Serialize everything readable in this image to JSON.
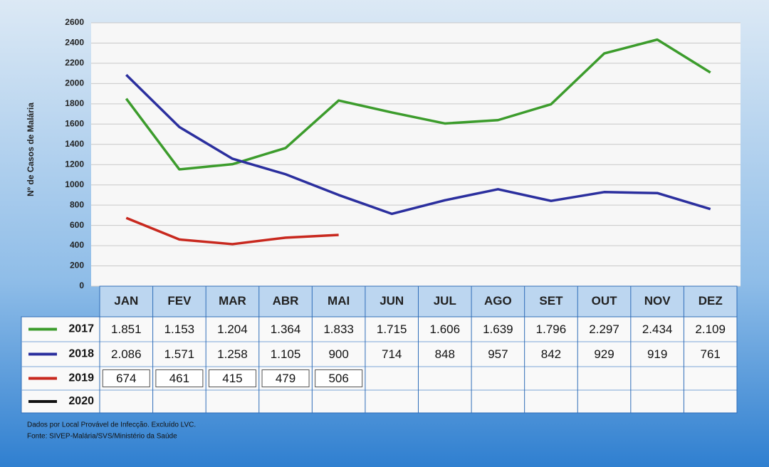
{
  "chart_data": {
    "type": "line",
    "y_label": "Nº de Casos de Malária",
    "categories": [
      "JAN",
      "FEV",
      "MAR",
      "ABR",
      "MAI",
      "JUN",
      "JUL",
      "AGO",
      "SET",
      "OUT",
      "NOV",
      "DEZ"
    ],
    "ylim": [
      0,
      2600
    ],
    "yticks": [
      0,
      200,
      400,
      600,
      800,
      1000,
      1200,
      1400,
      1600,
      1800,
      2000,
      2200,
      2400,
      2600
    ],
    "grid": true,
    "series": [
      {
        "name": "2017",
        "color": "#3c9c2c",
        "values": [
          1851,
          1153,
          1204,
          1364,
          1833,
          1715,
          1606,
          1639,
          1796,
          2297,
          2434,
          2109
        ],
        "value_labels": [
          "1.851",
          "1.153",
          "1.204",
          "1.364",
          "1.833",
          "1.715",
          "1.606",
          "1.639",
          "1.796",
          "2.297",
          "2.434",
          "2.109"
        ]
      },
      {
        "name": "2018",
        "color": "#2b2f9e",
        "values": [
          2086,
          1571,
          1258,
          1105,
          900,
          714,
          848,
          957,
          842,
          929,
          919,
          761
        ],
        "value_labels": [
          "2.086",
          "1.571",
          "1.258",
          "1.105",
          "900",
          "714",
          "848",
          "957",
          "842",
          "929",
          "919",
          "761"
        ]
      },
      {
        "name": "2019",
        "color": "#c8281e",
        "values": [
          674,
          461,
          415,
          479,
          506,
          null,
          null,
          null,
          null,
          null,
          null,
          null
        ]
      },
      {
        "name": "2020",
        "color": "#111111",
        "values": [
          null,
          null,
          null,
          null,
          null,
          null,
          null,
          null,
          null,
          null,
          null,
          null
        ]
      }
    ],
    "notes": [
      "Dados por Local Provável de Infecção. Excluído LVC.",
      "Fonte: SIVEP-Malária/SVS/Ministério da Saúde"
    ]
  }
}
